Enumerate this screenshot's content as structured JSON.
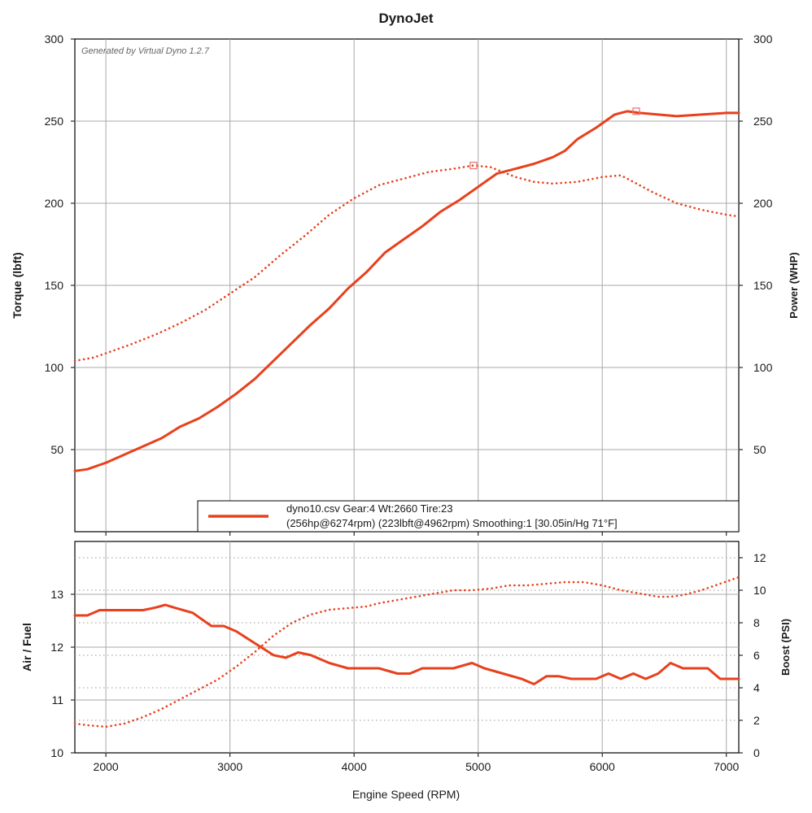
{
  "title": "DynoJet",
  "watermark": "Generated by Virtual Dyno 1.2.7",
  "colors": {
    "series": "#e8401c",
    "marker": "#e87a78",
    "grid": "#a8a8a8",
    "axis": "#000000",
    "text": "#1a1a1a"
  },
  "chart_data": [
    {
      "type": "line",
      "title": "DynoJet",
      "xlabel": "Engine Speed (RPM)",
      "ylabel": "Torque (lbft)",
      "y2label": "Power (WHP)",
      "xlim": [
        1750,
        7100
      ],
      "ylim": [
        0,
        300
      ],
      "y2lim": [
        0,
        300
      ],
      "yticks": [
        50,
        100,
        150,
        200,
        250,
        300
      ],
      "y2ticks": [
        50,
        100,
        150,
        200,
        250,
        300
      ],
      "xticks": [
        2000,
        3000,
        4000,
        5000,
        6000,
        7000
      ],
      "legend": {
        "position": "bottom-right",
        "line1": "dyno10.csv Gear:4 Wt:2660 Tire:23",
        "line2": "(256hp@6274rpm) (223lbft@4962rpm)  Smoothing:1 [30.05in/Hg 71°F]"
      },
      "series": [
        {
          "name": "Power (WHP)",
          "style": "solid",
          "axis": "right",
          "x": [
            1750,
            1850,
            2000,
            2150,
            2300,
            2450,
            2600,
            2750,
            2900,
            3050,
            3200,
            3350,
            3500,
            3650,
            3800,
            3950,
            4100,
            4250,
            4400,
            4550,
            4700,
            4850,
            5000,
            5150,
            5300,
            5450,
            5600,
            5700,
            5800,
            5950,
            6100,
            6200,
            6300,
            6450,
            6600,
            6800,
            7000,
            7100
          ],
          "y": [
            37,
            38,
            42,
            47,
            52,
            57,
            64,
            69,
            76,
            84,
            93,
            104,
            115,
            126,
            136,
            148,
            158,
            170,
            178,
            186,
            195,
            202,
            210,
            218,
            221,
            224,
            228,
            232,
            239,
            246,
            254,
            256,
            255,
            254,
            253,
            254,
            255,
            255
          ]
        },
        {
          "name": "Torque (lbft)",
          "style": "dotted",
          "axis": "left",
          "x": [
            1750,
            1900,
            2050,
            2200,
            2400,
            2600,
            2800,
            3000,
            3200,
            3400,
            3600,
            3800,
            4000,
            4200,
            4400,
            4600,
            4800,
            4962,
            5100,
            5300,
            5450,
            5600,
            5800,
            6000,
            6150,
            6250,
            6400,
            6600,
            6800,
            7000,
            7100
          ],
          "y": [
            104,
            106,
            110,
            114,
            120,
            127,
            135,
            145,
            155,
            168,
            180,
            193,
            203,
            211,
            215,
            219,
            221,
            223,
            222,
            216,
            213,
            212,
            213,
            216,
            217,
            213,
            207,
            200,
            196,
            193,
            192
          ]
        }
      ],
      "markers": [
        {
          "series": "Power (WHP)",
          "x": 6274,
          "y": 256
        },
        {
          "series": "Torque (lbft)",
          "x": 4962,
          "y": 223
        }
      ]
    },
    {
      "type": "line",
      "xlabel": "Engine Speed (RPM)",
      "ylabel": "Air / Fuel",
      "y2label": "Boost (PSI)",
      "xlim": [
        1750,
        7100
      ],
      "ylim": [
        10,
        14
      ],
      "y2lim": [
        0,
        13
      ],
      "yticks": [
        10,
        11,
        12,
        13
      ],
      "y2ticks": [
        0,
        2,
        4,
        6,
        8,
        10,
        12
      ],
      "xticks": [
        2000,
        3000,
        4000,
        5000,
        6000,
        7000
      ],
      "series": [
        {
          "name": "Air / Fuel",
          "style": "solid",
          "axis": "left",
          "x": [
            1750,
            1850,
            1950,
            2050,
            2150,
            2300,
            2400,
            2480,
            2550,
            2700,
            2850,
            2950,
            3050,
            3150,
            3250,
            3350,
            3450,
            3550,
            3650,
            3800,
            3950,
            4100,
            4200,
            4350,
            4450,
            4550,
            4650,
            4800,
            4950,
            5050,
            5200,
            5350,
            5450,
            5550,
            5650,
            5750,
            5850,
            5950,
            6050,
            6150,
            6250,
            6350,
            6450,
            6550,
            6650,
            6750,
            6850,
            6950,
            7050,
            7100
          ],
          "y": [
            12.6,
            12.6,
            12.7,
            12.7,
            12.7,
            12.7,
            12.75,
            12.8,
            12.75,
            12.65,
            12.4,
            12.4,
            12.3,
            12.15,
            12.0,
            11.85,
            11.8,
            11.9,
            11.85,
            11.7,
            11.6,
            11.6,
            11.6,
            11.5,
            11.5,
            11.6,
            11.6,
            11.6,
            11.7,
            11.6,
            11.5,
            11.4,
            11.3,
            11.45,
            11.45,
            11.4,
            11.4,
            11.4,
            11.5,
            11.4,
            11.5,
            11.4,
            11.5,
            11.7,
            11.6,
            11.6,
            11.6,
            11.4,
            11.4,
            11.4
          ]
        },
        {
          "name": "Boost (PSI)",
          "style": "dotted",
          "axis": "right",
          "x": [
            1750,
            1850,
            2000,
            2150,
            2300,
            2450,
            2600,
            2750,
            2900,
            3050,
            3200,
            3350,
            3500,
            3650,
            3800,
            3950,
            4100,
            4200,
            4350,
            4500,
            4650,
            4800,
            4950,
            5100,
            5250,
            5400,
            5550,
            5700,
            5850,
            6000,
            6150,
            6300,
            6450,
            6550,
            6650,
            6800,
            6950,
            7100
          ],
          "y": [
            1.8,
            1.7,
            1.6,
            1.8,
            2.2,
            2.7,
            3.3,
            3.9,
            4.5,
            5.3,
            6.2,
            7.2,
            8.0,
            8.5,
            8.8,
            8.9,
            9.0,
            9.2,
            9.4,
            9.6,
            9.8,
            10.0,
            10.0,
            10.1,
            10.3,
            10.3,
            10.4,
            10.5,
            10.5,
            10.3,
            10.0,
            9.8,
            9.6,
            9.6,
            9.7,
            10.0,
            10.4,
            10.8
          ]
        }
      ]
    }
  ]
}
